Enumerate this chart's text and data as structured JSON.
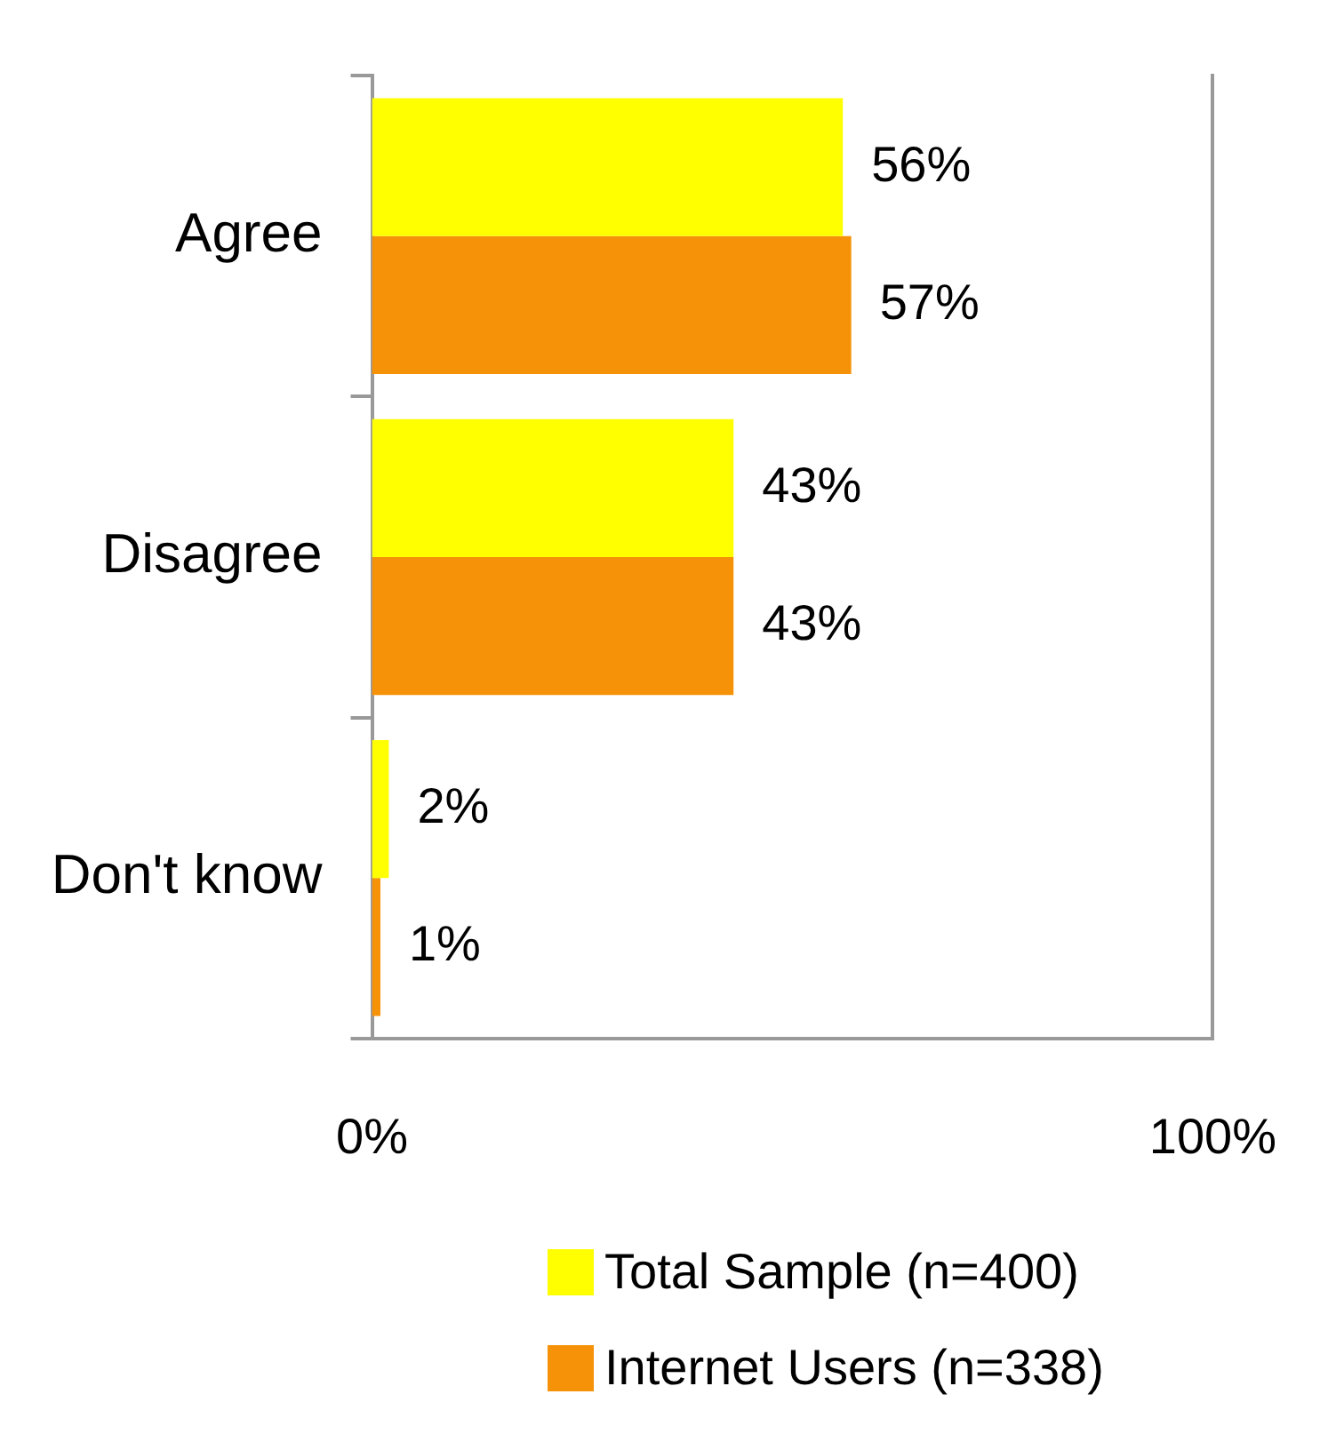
{
  "chart_data": {
    "type": "bar",
    "orientation": "horizontal",
    "categories": [
      "Agree",
      "Disagree",
      "Don't know"
    ],
    "series": [
      {
        "name": "Total Sample (n=400)",
        "color": "#ffff00",
        "values": [
          56,
          43,
          2
        ],
        "value_labels": [
          "56%",
          "43%",
          "2%"
        ]
      },
      {
        "name": "Internet Users (n=338)",
        "color": "#f59208",
        "values": [
          57,
          43,
          1
        ],
        "value_labels": [
          "57%",
          "43%",
          "1%"
        ]
      }
    ],
    "xlim": [
      0,
      100
    ],
    "xticks": [
      {
        "value": 0,
        "label": "0%"
      },
      {
        "value": 100,
        "label": "100%"
      }
    ],
    "legend": "bottom"
  }
}
